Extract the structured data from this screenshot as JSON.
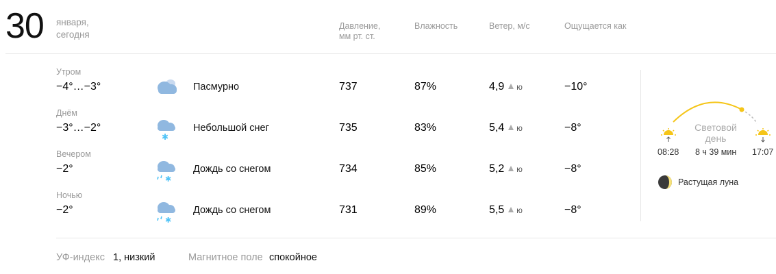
{
  "date": {
    "day": "30",
    "month": "января,",
    "relative": "сегодня"
  },
  "headers": {
    "pressure_line1": "Давление,",
    "pressure_line2": "мм рт. ст.",
    "humidity": "Влажность",
    "wind": "Ветер, м/с",
    "feels": "Ощущается как"
  },
  "rows": [
    {
      "part": "Утром",
      "temp": "−4°…−3°",
      "icon": "cloudy-icon",
      "condition": "Пасмурно",
      "pressure": "737",
      "humidity": "87%",
      "wind_speed": "4,9",
      "wind_dir": "ю",
      "feels": "−10°"
    },
    {
      "part": "Днём",
      "temp": "−3°…−2°",
      "icon": "light-snow-icon",
      "condition": "Небольшой снег",
      "pressure": "735",
      "humidity": "83%",
      "wind_speed": "5,4",
      "wind_dir": "ю",
      "feels": "−8°"
    },
    {
      "part": "Вечером",
      "temp": "−2°",
      "icon": "sleet-icon",
      "condition": "Дождь со снегом",
      "pressure": "734",
      "humidity": "85%",
      "wind_speed": "5,2",
      "wind_dir": "ю",
      "feels": "−8°"
    },
    {
      "part": "Ночью",
      "temp": "−2°",
      "icon": "sleet-icon",
      "condition": "Дождь со снегом",
      "pressure": "731",
      "humidity": "89%",
      "wind_speed": "5,5",
      "wind_dir": "ю",
      "feels": "−8°"
    }
  ],
  "sun": {
    "sunrise": "08:28",
    "sunset": "17:07",
    "daylight_line1": "Световой",
    "daylight_line2": "день",
    "duration": "8 ч 39 мин"
  },
  "moon": {
    "phase": "Растущая луна",
    "icon": "waxing-moon-icon"
  },
  "footer": {
    "uv_label": "УФ-индекс",
    "uv_value": "1, низкий",
    "magnetic_label": "Магнитное поле",
    "magnetic_value": "спокойное"
  },
  "colors": {
    "sun_arc": "#f5c518",
    "snow": "#4fc3f7",
    "cloud": "#90b8e0",
    "muted_text": "#999999"
  }
}
